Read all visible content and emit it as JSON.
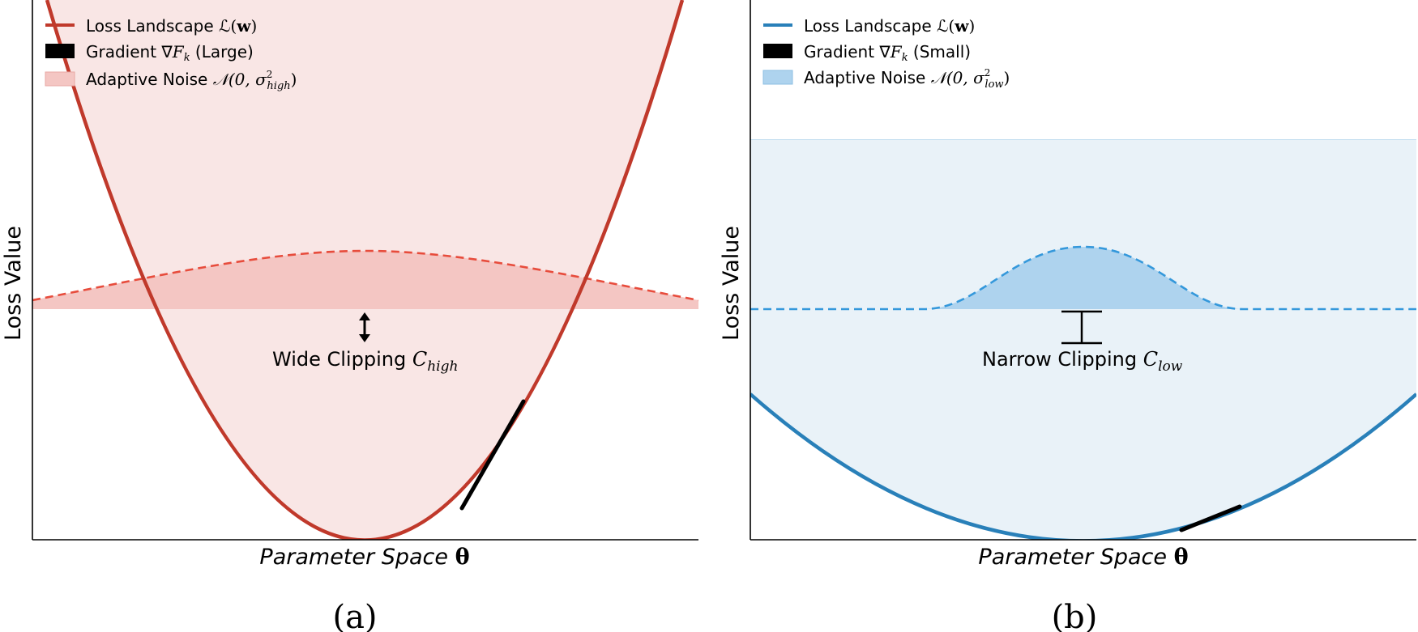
{
  "chart_data": [
    {
      "panel_label": "(a)",
      "type": "line",
      "xlabel": "Parameter Space θ",
      "ylabel": "Loss Value",
      "legend": [
        {
          "text": "Loss Landscape ℒ(w)",
          "color": "#c0392b",
          "swatch": "line"
        },
        {
          "text": "Gradient ∇F_k (Large)",
          "color": "#000000",
          "swatch": "bar"
        },
        {
          "text": "Adaptive Noise 𝒩(0, σ²_high)",
          "color": "#f4c6c3",
          "swatch": "patch"
        }
      ],
      "loss_curve": {
        "shape": "parabola",
        "curvature": "high",
        "min_x": 0.5,
        "min_y": 0
      },
      "noise": {
        "center": 0.5,
        "spread": "wide",
        "baseline": 0.43,
        "peak": 0.54
      },
      "gradient_tangent": {
        "x": 0.64,
        "label": "Large"
      },
      "clipping": {
        "label": "Wide Clipping C_high",
        "style": "double-arrow"
      },
      "colors": {
        "curve": "#c0392b",
        "fill": "#f9e6e5",
        "noise": "#f4c6c3",
        "noise_line": "#e74c3c"
      },
      "legend_position": "top-left"
    },
    {
      "panel_label": "(b)",
      "type": "line",
      "xlabel": "Parameter Space θ",
      "ylabel": "Loss Value",
      "legend": [
        {
          "text": "Loss Landscape ℒ(w)",
          "color": "#2980b9",
          "swatch": "line"
        },
        {
          "text": "Gradient ∇F_k (Small)",
          "color": "#000000",
          "swatch": "bar"
        },
        {
          "text": "Adaptive Noise 𝒩(0, σ²_low)",
          "color": "#aed3ee",
          "swatch": "patch"
        }
      ],
      "loss_curve": {
        "shape": "parabola",
        "curvature": "low",
        "min_x": 0.5,
        "min_y": 0
      },
      "noise": {
        "center": 0.5,
        "spread": "narrow",
        "baseline": 0.43,
        "peak": 0.55
      },
      "gradient_tangent": {
        "x": 0.6,
        "label": "Small"
      },
      "clipping": {
        "label": "Narrow Clipping C_low",
        "style": "bracket"
      },
      "colors": {
        "curve": "#2980b9",
        "fill": "#e9f2f8",
        "noise": "#aed3ee",
        "noise_line": "#3498db"
      },
      "legend_position": "top-left"
    }
  ],
  "text": {
    "a": {
      "legend1_pre": "Loss Landscape ",
      "legend1_math": "ℒ(",
      "legend1_bold": "w",
      "legend1_end": ")",
      "legend2_pre": "Gradient ∇",
      "legend2_F": "F",
      "legend2_k": "k",
      "legend2_post": " (Large)",
      "legend3_pre": "Adaptive Noise ",
      "legend3_math": "𝒩(0, σ",
      "legend3_sup": "2",
      "legend3_sub": "high",
      "legend3_end": ")",
      "ylabel": "Loss Value",
      "xlabel_it": "Parameter Space ",
      "xlabel_sym": "θ",
      "clip_pre": "Wide Clipping ",
      "clip_C": "C",
      "clip_sub": "high",
      "panel": "(a)"
    },
    "b": {
      "legend1_pre": "Loss Landscape ",
      "legend1_math": "ℒ(",
      "legend1_bold": "w",
      "legend1_end": ")",
      "legend2_pre": "Gradient ∇",
      "legend2_F": "F",
      "legend2_k": "k",
      "legend2_post": " (Small)",
      "legend3_pre": "Adaptive Noise ",
      "legend3_math": "𝒩(0, σ",
      "legend3_sup": "2",
      "legend3_sub": "low",
      "legend3_end": ")",
      "ylabel": "Loss Value",
      "xlabel_it": "Parameter Space ",
      "xlabel_sym": "θ",
      "clip_pre": "Narrow Clipping ",
      "clip_C": "C",
      "clip_sub": "low",
      "panel": "(b)"
    }
  }
}
